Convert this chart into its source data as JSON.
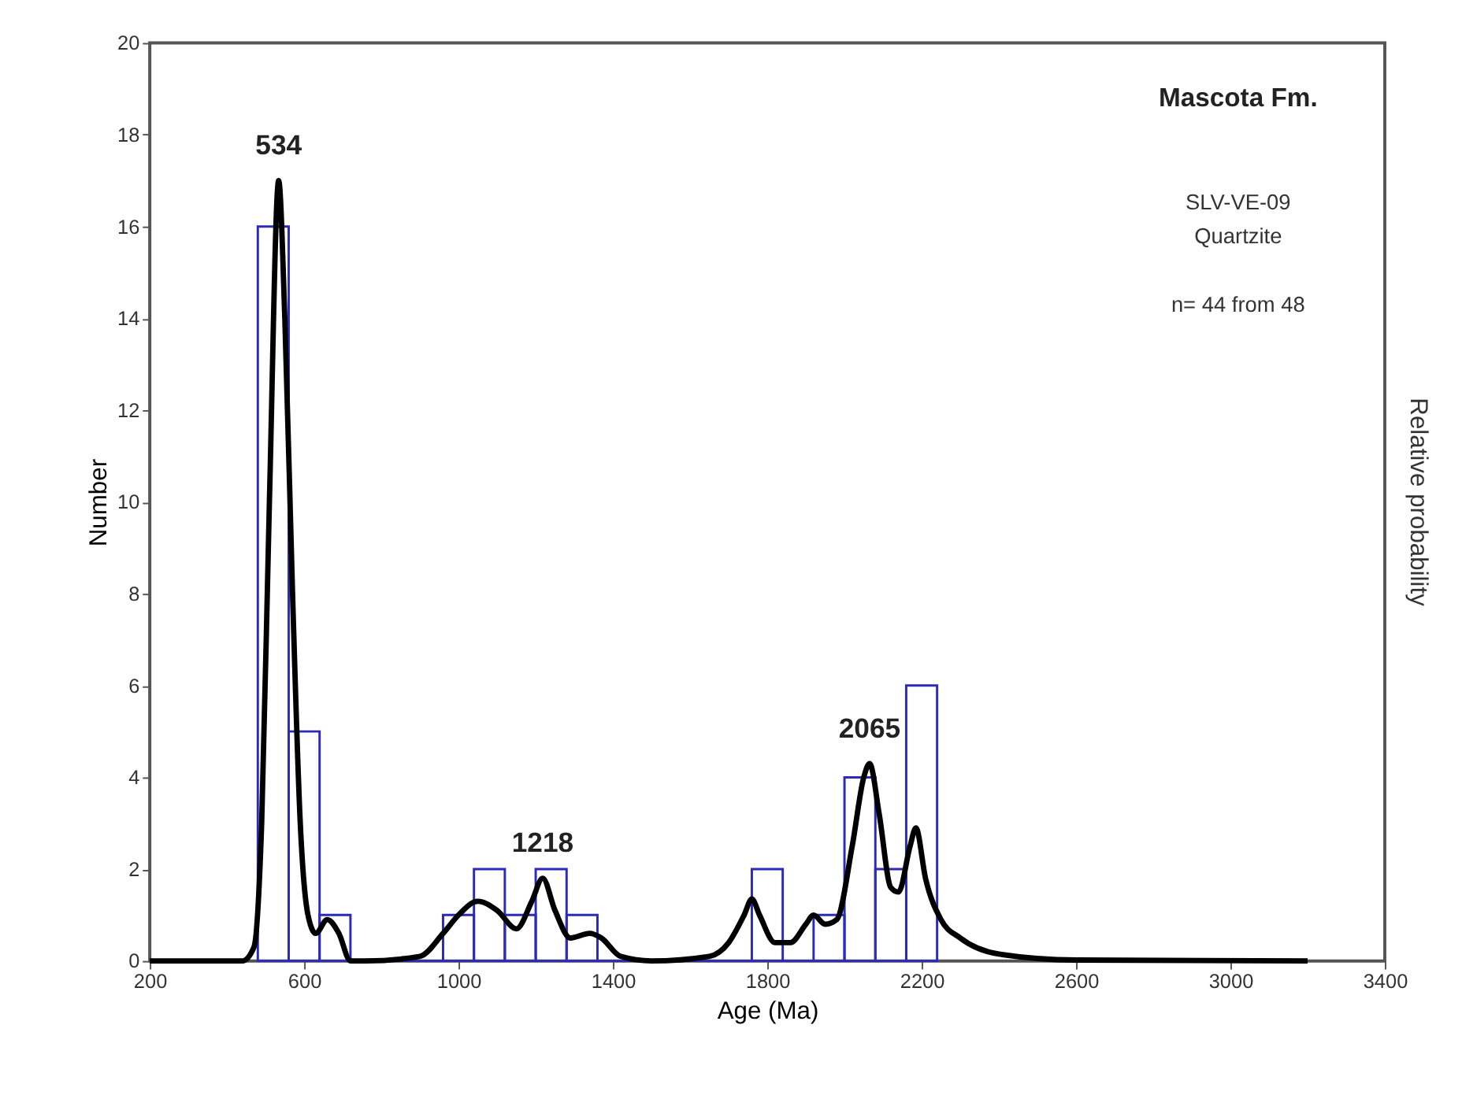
{
  "chart_data": {
    "type": "histogram",
    "title": "Mascota Fm.",
    "xlabel": "Age (Ma)",
    "ylabel": "Number",
    "y2label": "Relative probability",
    "bins": [
      480,
      560,
      640,
      720,
      800,
      880,
      960,
      1040,
      1120,
      1200,
      1280,
      1360,
      1440,
      1520,
      1600,
      1680,
      1760,
      1840,
      1920,
      2000,
      2080,
      2160,
      2240
    ],
    "values": [
      16,
      5,
      1,
      0,
      0,
      0,
      1,
      2,
      1,
      2,
      1,
      0,
      0,
      0,
      0,
      0,
      2,
      0,
      1,
      4,
      2,
      6
    ],
    "color": "#2b2bb8",
    "series": [
      {
        "type": "line",
        "color": "#000000",
        "x": [
          200,
          440,
          470,
          490,
          510,
          534,
          550,
          570,
          590,
          610,
          630,
          660,
          690,
          720,
          760,
          900,
          960,
          1000,
          1050,
          1100,
          1150,
          1190,
          1218,
          1250,
          1290,
          1340,
          1370,
          1420,
          1500,
          1650,
          1700,
          1740,
          1760,
          1780,
          1820,
          1860,
          1900,
          1920,
          1950,
          1980,
          2020,
          2050,
          2065,
          2090,
          2120,
          2140,
          2170,
          2185,
          2210,
          2250,
          2300,
          2400,
          2600,
          3200
        ],
        "values": [
          0,
          0,
          0.3,
          3,
          10,
          17,
          14,
          8,
          3,
          1,
          0.6,
          0.9,
          0.6,
          0,
          0,
          0.1,
          0.6,
          1.0,
          1.3,
          1.1,
          0.7,
          1.3,
          1.8,
          1.1,
          0.5,
          0.6,
          0.5,
          0.1,
          0,
          0.1,
          0.4,
          1.0,
          1.35,
          1.0,
          0.4,
          0.4,
          0.8,
          1.0,
          0.8,
          0.9,
          2.5,
          4.0,
          4.3,
          3.2,
          1.6,
          1.5,
          2.5,
          2.9,
          1.8,
          0.9,
          0.5,
          0.15,
          0.02,
          0
        ]
      }
    ],
    "annotations": [
      {
        "text": "534",
        "x": 534,
        "y": 17
      },
      {
        "text": "1218",
        "x": 1218,
        "y": 1.8
      },
      {
        "text": "2065",
        "x": 2065,
        "y": 4.3
      },
      "SLV-VE-09",
      "Quartzite",
      "n= 44 from 48"
    ],
    "xlim": [
      200,
      3400
    ],
    "xticks": [
      200,
      600,
      1000,
      1400,
      1800,
      2200,
      2600,
      3000,
      3400
    ],
    "ylim": [
      0,
      20
    ],
    "yticks": [
      0,
      2,
      4,
      6,
      8,
      10,
      12,
      14,
      16,
      18,
      20
    ],
    "grid": false
  }
}
